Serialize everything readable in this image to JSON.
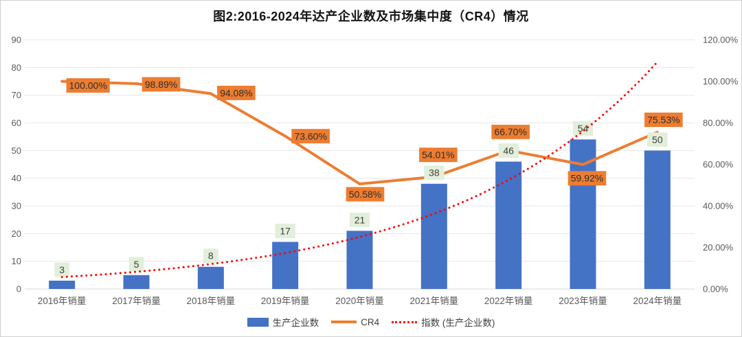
{
  "title": "图2:2016-2024年达产企业数及市场集中度（CR4）情况",
  "chart_data": {
    "type": "combo",
    "title": "图2:2016-2024年达产企业数及市场集中度（CR4）情况",
    "categories": [
      "2016年销量",
      "2017年销量",
      "2018年销量",
      "2019年销量",
      "2020年销量",
      "2021年销量",
      "2022年销量",
      "2023年销量",
      "2024年销量"
    ],
    "series": [
      {
        "name": "生产企业数",
        "type": "bar",
        "axis": "left",
        "color": "#4472C4",
        "values": [
          3,
          5,
          8,
          17,
          21,
          38,
          46,
          54,
          50
        ],
        "data_labels": [
          "3",
          "5",
          "8",
          "17",
          "21",
          "38",
          "46",
          "54",
          "50"
        ],
        "label_bg": "#E2EFDA",
        "label_color": "#3f3f3f"
      },
      {
        "name": "CR4",
        "type": "line",
        "axis": "right",
        "color": "#ED7D31",
        "values": [
          100.0,
          98.89,
          94.08,
          73.6,
          50.58,
          54.01,
          66.7,
          59.92,
          75.53
        ],
        "data_labels": [
          "100.00%",
          "98.89%",
          "94.08%",
          "73.60%",
          "50.58%",
          "54.01%",
          "66.70%",
          "59.92%",
          "75.53%"
        ],
        "label_bg": "#ED7D31",
        "label_color": "#2e2e2e"
      },
      {
        "name": "指数 (生产企业数)",
        "type": "trendline",
        "axis": "left",
        "color": "#FF0000",
        "style": "dotted",
        "values": [
          4.3,
          6.2,
          9.0,
          13.0,
          18.8,
          27.2,
          39.4,
          57.0,
          82.0
        ]
      }
    ],
    "left_axis": {
      "min": 0,
      "max": 90,
      "step": 10,
      "ticks": [
        "0",
        "10",
        "20",
        "30",
        "40",
        "50",
        "60",
        "70",
        "80",
        "90"
      ]
    },
    "right_axis": {
      "min": 0,
      "max": 120,
      "step": 20,
      "ticks": [
        "0.00%",
        "20.00%",
        "40.00%",
        "60.00%",
        "80.00%",
        "100.00%",
        "120.00%"
      ]
    },
    "grid": "horizontal",
    "legend_position": "bottom",
    "legend": [
      {
        "label": "生产企业数",
        "swatch": "bar",
        "color": "#4472C4"
      },
      {
        "label": "CR4",
        "swatch": "line",
        "color": "#ED7D31"
      },
      {
        "label": "指数 (生产企业数)",
        "swatch": "dotted",
        "color": "#FF0000"
      }
    ],
    "colors": {
      "bar": "#4472C4",
      "cr4_line": "#ED7D31",
      "trend": "#FF0000",
      "gridline": "#E7E7E7",
      "axis_line": "#D6D6D6",
      "tick_text": "#595959"
    }
  }
}
